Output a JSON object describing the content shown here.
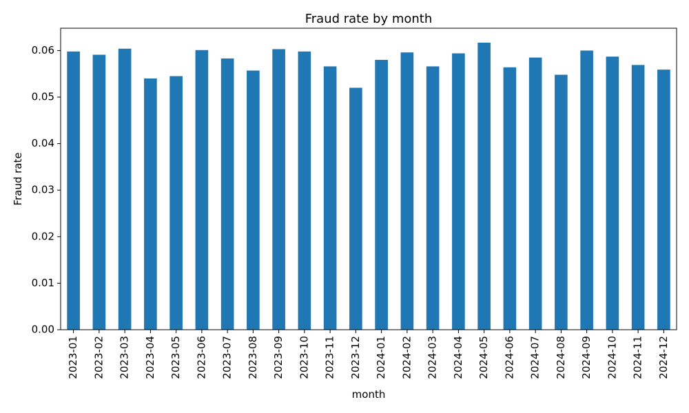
{
  "chart_data": {
    "type": "bar",
    "title": "Fraud rate by month",
    "xlabel": "month",
    "ylabel": "Fraud rate",
    "categories": [
      "2023-01",
      "2023-02",
      "2023-03",
      "2023-04",
      "2023-05",
      "2023-06",
      "2023-07",
      "2023-08",
      "2023-09",
      "2023-10",
      "2023-11",
      "2023-12",
      "2024-01",
      "2024-02",
      "2024-03",
      "2024-04",
      "2024-05",
      "2024-06",
      "2024-07",
      "2024-08",
      "2024-09",
      "2024-10",
      "2024-11",
      "2024-12"
    ],
    "values": [
      0.0598,
      0.0591,
      0.0604,
      0.054,
      0.0545,
      0.0601,
      0.0583,
      0.0557,
      0.0603,
      0.0598,
      0.0566,
      0.052,
      0.058,
      0.0596,
      0.0566,
      0.0594,
      0.0617,
      0.0564,
      0.0585,
      0.0548,
      0.06,
      0.0587,
      0.0569,
      0.0559
    ],
    "yticks": [
      0.0,
      0.01,
      0.02,
      0.03,
      0.04,
      0.05,
      0.06
    ],
    "ytick_labels": [
      "0.00",
      "0.01",
      "0.02",
      "0.03",
      "0.04",
      "0.05",
      "0.06"
    ],
    "ylim": [
      0,
      0.0648
    ],
    "grid": false,
    "legend": "none",
    "bar_color": "#1f77b4"
  }
}
